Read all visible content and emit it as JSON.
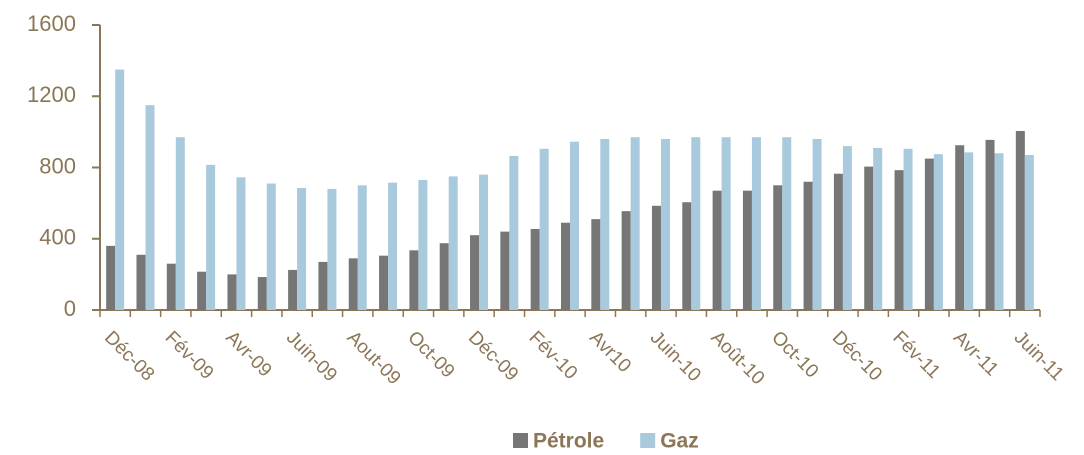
{
  "chart_data": {
    "type": "bar",
    "categories": [
      "Déc-08",
      null,
      "Fév-09",
      null,
      "Avr-09",
      null,
      "Juin-09",
      null,
      "Aout-09",
      null,
      "Oct-09",
      null,
      "Déc-09",
      null,
      "Fév-10",
      null,
      "Avr10",
      null,
      "Juin-10",
      null,
      "Août-10",
      null,
      "Oct-10",
      null,
      "Déc-10",
      null,
      "Fév-11",
      null,
      "Avr-11",
      null,
      "Juin-11"
    ],
    "series": [
      {
        "name": "Pétrole",
        "color": "#767676",
        "values": [
          360,
          310,
          260,
          215,
          200,
          185,
          225,
          270,
          290,
          305,
          335,
          375,
          420,
          440,
          455,
          490,
          510,
          555,
          585,
          605,
          670,
          670,
          700,
          720,
          765,
          805,
          785,
          850,
          925,
          955,
          1005
        ]
      },
      {
        "name": "Gaz",
        "color": "#a9c9dc",
        "values": [
          1350,
          1150,
          970,
          815,
          745,
          710,
          685,
          680,
          700,
          715,
          730,
          750,
          760,
          865,
          905,
          945,
          960,
          970,
          960,
          970,
          970,
          970,
          970,
          960,
          920,
          910,
          905,
          875,
          885,
          880,
          870
        ]
      }
    ],
    "ylim": [
      0,
      1600
    ],
    "yticks": [
      0,
      400,
      800,
      1200,
      1600
    ],
    "grid": false,
    "legend": "bottom"
  }
}
